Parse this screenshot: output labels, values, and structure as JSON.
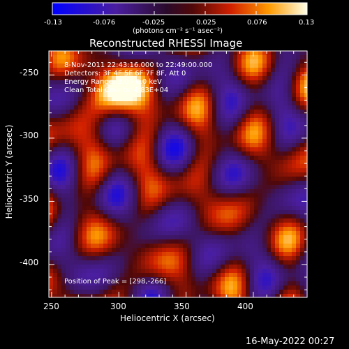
{
  "colorbar": {
    "ticks": [
      "-0.13",
      "-0.076",
      "-0.025",
      "0.025",
      "0.076",
      "0.13"
    ],
    "unit_label": "(photons cm⁻² s⁻¹ asec⁻²)"
  },
  "chart_data": {
    "type": "heatmap",
    "title": "Reconstructed RHESSI Image",
    "xlabel": "Heliocentric X (arcsec)",
    "ylabel": "Heliocentric Y (arcsec)",
    "xlim": [
      248,
      440
    ],
    "ylim": [
      -426,
      -231
    ],
    "x_ticks": [
      "250",
      "300",
      "350",
      "400"
    ],
    "y_ticks": [
      "-250",
      "-300",
      "-350",
      "-400"
    ],
    "color_range": [
      -0.13,
      0.13
    ],
    "colormap": "blue-purple-red-yellow-white",
    "peak": [
      298,
      -266
    ],
    "annotations": {
      "time": "8-Nov-2011 22:43:16.000 to 22:49:00.000",
      "detectors": "Detectors: 3F 4F 5F 6F 7F 8F, Att 0",
      "energy": "Energy Range: 3.0 - 6.0 keV",
      "method": "Clean    Total Counts: 4.83E+04",
      "peak_text": "Position of Peak = [298,-266]"
    }
  },
  "footer": {
    "date": "16-May-2022 00:27"
  }
}
